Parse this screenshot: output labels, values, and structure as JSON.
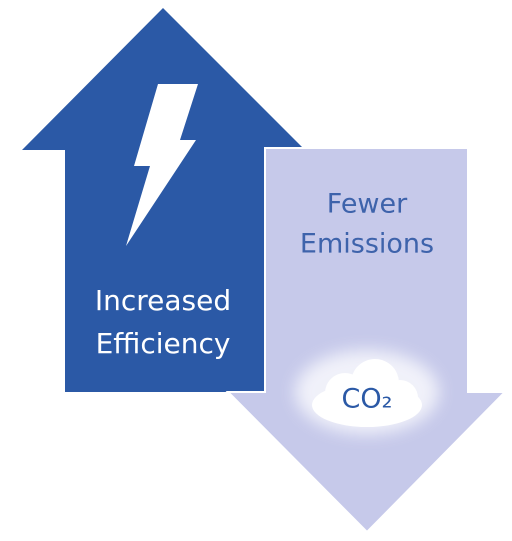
{
  "up_arrow": {
    "label": [
      "Increased",
      "Efficiency"
    ]
  },
  "down_arrow": {
    "label": [
      "Fewer",
      "Emissions"
    ],
    "cloud_label": "CO₂"
  }
}
